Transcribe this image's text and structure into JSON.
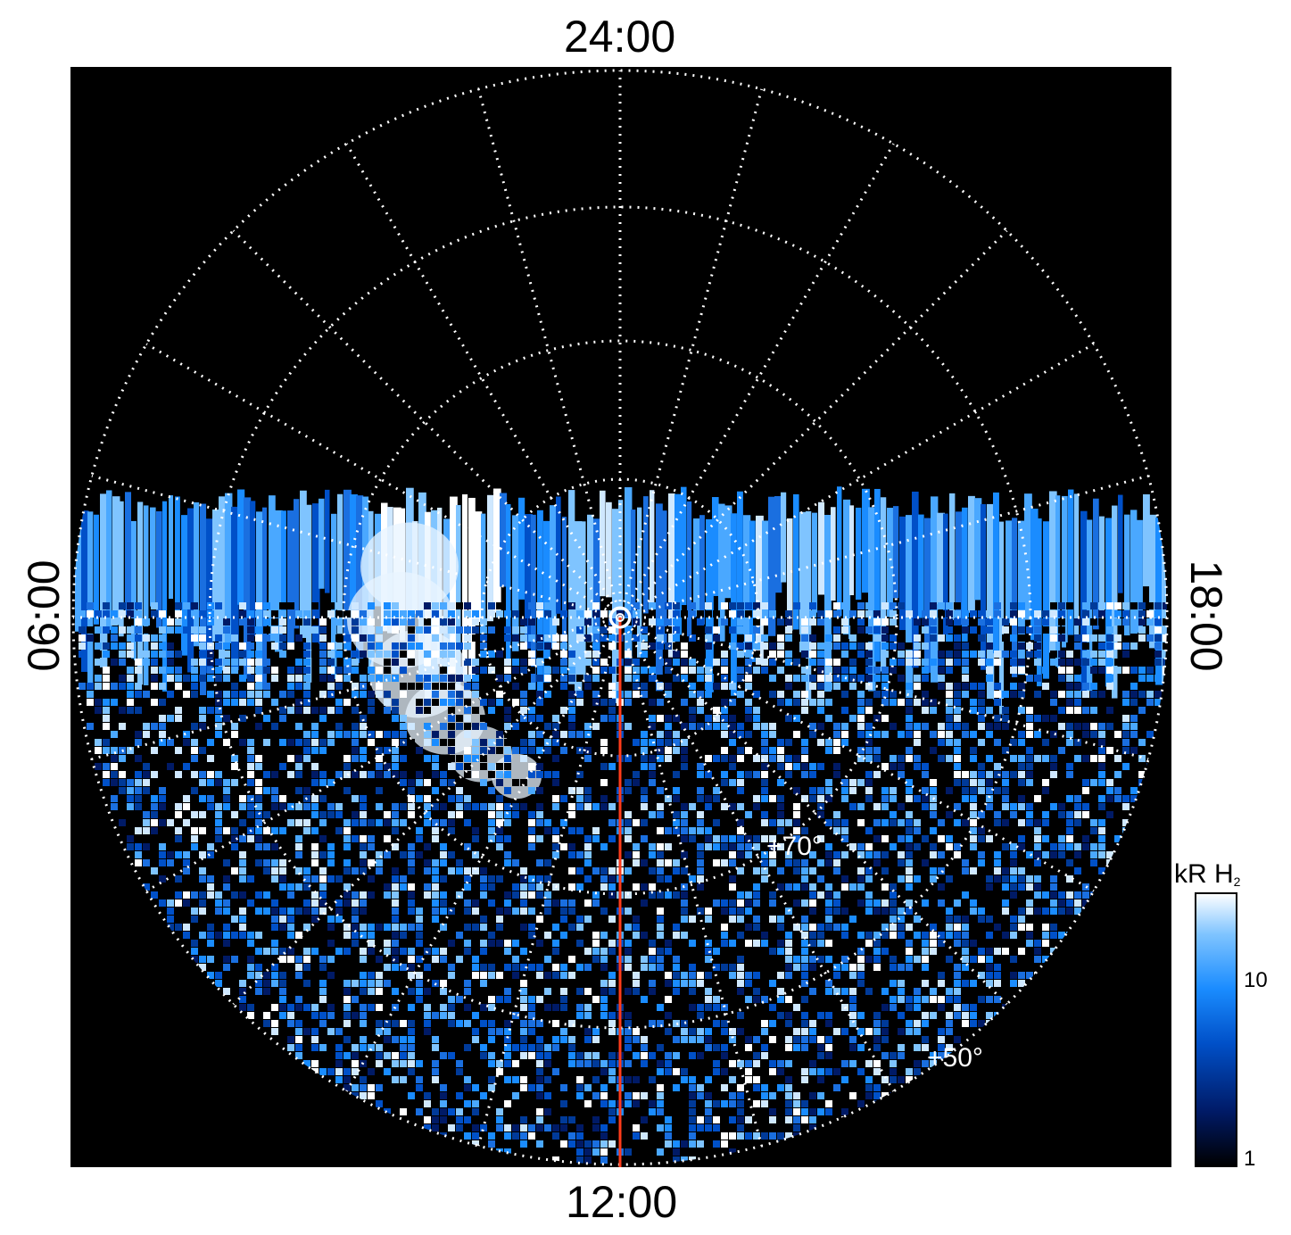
{
  "labels": {
    "top": "24:00",
    "bottom": "12:00",
    "left": "06:00",
    "right": "18:00",
    "lat_inner": "+70°",
    "lat_outer": "+50°"
  },
  "colorbar": {
    "title_main": "kR H",
    "title_sub": "2",
    "ticks": [
      "10",
      "1"
    ],
    "colors": [
      "#000000",
      "#001a66",
      "#0050c8",
      "#1a8cff",
      "#7fc4ff",
      "#ffffff"
    ]
  },
  "colors": {
    "background": "#000000",
    "grid": "#ffffff",
    "meridian": "#ff3b1a",
    "emission_bright": "#ffffff",
    "emission_mid": "#1a8cff",
    "emission_dark": "#002266"
  }
}
